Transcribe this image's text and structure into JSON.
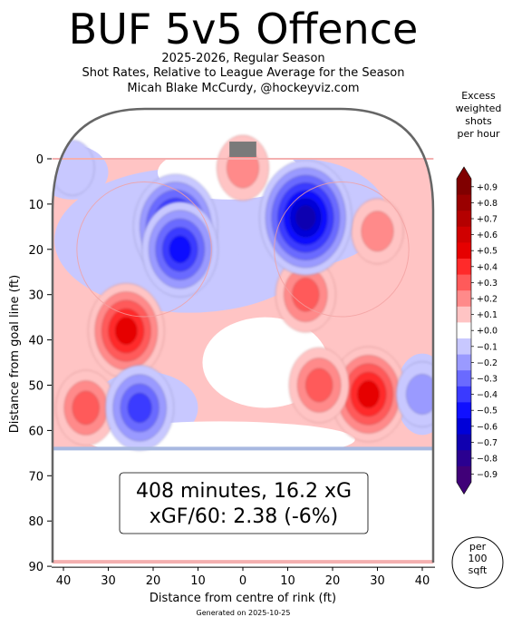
{
  "header": {
    "title": "BUF 5v5 Offence",
    "subtitle_line1": "2025-2026, Regular Season",
    "subtitle_line2": "Shot Rates, Relative to League Average for the Season",
    "subtitle_line3": "Micah Blake McCurdy, @hockeyviz.com"
  },
  "summary": {
    "line1": "408 minutes, 16.2 xG",
    "line2": "xGF/60: 2.38 (-6%)"
  },
  "per_area_label": [
    "per",
    "100",
    "sqft"
  ],
  "footer": "Generated on 2025-10-25",
  "colors": {
    "strong_positive": "#8b0000",
    "positive": "#ff2020",
    "neutral": "#ffffff",
    "negative": "#2a2aff",
    "strong_negative": "#1a0080",
    "rink_line": "#666666",
    "goal_line": "#f4b0b0",
    "blue_line": "#a8b8e0"
  },
  "chart_data": {
    "type": "heatmap",
    "title": "BUF 5v5 Offence",
    "xlabel": "Distance from centre of rink (ft)",
    "ylabel": "Distance from goal line (ft)",
    "xlim": [
      -42.5,
      42.5
    ],
    "ylim": [
      90,
      -11
    ],
    "x_ticks": [
      -40,
      -30,
      -20,
      -10,
      0,
      10,
      20,
      30,
      40
    ],
    "x_tick_labels": [
      "40",
      "30",
      "20",
      "10",
      "0",
      "10",
      "20",
      "30",
      "40"
    ],
    "y_ticks": [
      0,
      10,
      20,
      30,
      40,
      50,
      60,
      70,
      80,
      90
    ],
    "y_tick_labels": [
      "0",
      "10",
      "20",
      "30",
      "40",
      "50",
      "60",
      "70",
      "80",
      "90"
    ],
    "colorbar": {
      "title_lines": [
        "Excess",
        "weighted",
        "shots",
        "per hour"
      ],
      "levels": [
        0.9,
        0.8,
        0.7,
        0.6,
        0.5,
        0.4,
        0.3,
        0.2,
        0.1,
        0.0,
        -0.1,
        -0.2,
        -0.3,
        -0.4,
        -0.5,
        -0.6,
        -0.7,
        -0.8,
        -0.9
      ],
      "labels": [
        "+0.9",
        "+0.8",
        "+0.7",
        "+0.6",
        "+0.5",
        "+0.4",
        "+0.3",
        "+0.2",
        "+0.1",
        "+0.0",
        "−0.1",
        "−0.2",
        "−0.3",
        "−0.4",
        "−0.5",
        "−0.6",
        "−0.7",
        "−0.8",
        "−0.9"
      ],
      "colors": [
        "#800000",
        "#9a0000",
        "#b40000",
        "#d00000",
        "#e60000",
        "#ff2a2a",
        "#ff5a5a",
        "#ff8a8a",
        "#ffc4c4",
        "#ffffff",
        "#c8c8ff",
        "#9a9aff",
        "#6a6aff",
        "#3a3aff",
        "#1010ff",
        "#0000d8",
        "#1000b0",
        "#2a0090",
        "#400078"
      ]
    },
    "hotspots": [
      {
        "x": -26,
        "y": 38,
        "value": 0.5
      },
      {
        "x": -35,
        "y": 55,
        "value": 0.3
      },
      {
        "x": 14,
        "y": 30,
        "value": 0.3
      },
      {
        "x": 28,
        "y": 52,
        "value": 0.5
      },
      {
        "x": 17,
        "y": 50,
        "value": 0.3
      },
      {
        "x": 30,
        "y": 16,
        "value": 0.2
      },
      {
        "x": 0,
        "y": 2,
        "value": 0.2
      },
      {
        "x": -15,
        "y": 15,
        "value": -0.6
      },
      {
        "x": -14,
        "y": 20,
        "value": -0.5
      },
      {
        "x": 14,
        "y": 13,
        "value": -0.7
      },
      {
        "x": -23,
        "y": 55,
        "value": -0.4
      },
      {
        "x": 40,
        "y": 52,
        "value": -0.2
      },
      {
        "x": -38,
        "y": 2,
        "value": -0.1
      }
    ]
  }
}
